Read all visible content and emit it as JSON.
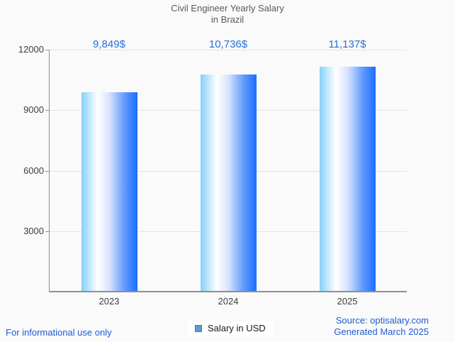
{
  "title": {
    "line1": "Civil Engineer Yearly Salary",
    "line2": "in Brazil"
  },
  "chart_data": {
    "type": "bar",
    "title": "Civil Engineer Yearly Salary in Brazil",
    "categories": [
      "2023",
      "2024",
      "2025"
    ],
    "values": [
      9849,
      10736,
      11137
    ],
    "value_labels": [
      "9,849$",
      "10,736$",
      "11,137$"
    ],
    "series": [
      {
        "name": "Salary in USD",
        "values": [
          9849,
          10736,
          11137
        ]
      }
    ],
    "xlabel": "",
    "ylabel": "",
    "ylim": [
      0,
      12000
    ],
    "yticks": [
      3000,
      6000,
      9000,
      12000
    ],
    "ytick_labels": [
      "3000",
      "6000",
      "9000",
      "12000"
    ],
    "grid": true,
    "legend_position": "bottom-center"
  },
  "legend": {
    "label": "Salary in USD",
    "marker_color": "#5b9bd5",
    "marker_border": "#3e79c0"
  },
  "footer": {
    "left": "For informational use only",
    "source": "Source: optisalary.com",
    "generated": "Generated March 2025"
  },
  "colors": {
    "background": "#fafafa",
    "title_text": "#595959",
    "axis_line": "#8f8f8f",
    "gridline": "#e3e3e3",
    "axis_label": "#3d3d3d",
    "value_label": "#2a6fd6",
    "footer_link": "#1f5bd6",
    "legend_text": "#1a1a1a",
    "bar_gradient_stops": [
      [
        "#85d1f9",
        "0%"
      ],
      [
        "#ffffff",
        "29%"
      ],
      [
        "#d7e3fe",
        "50%"
      ],
      [
        "#5d98fc",
        "78%"
      ],
      [
        "#1b6efe",
        "100%"
      ]
    ]
  }
}
